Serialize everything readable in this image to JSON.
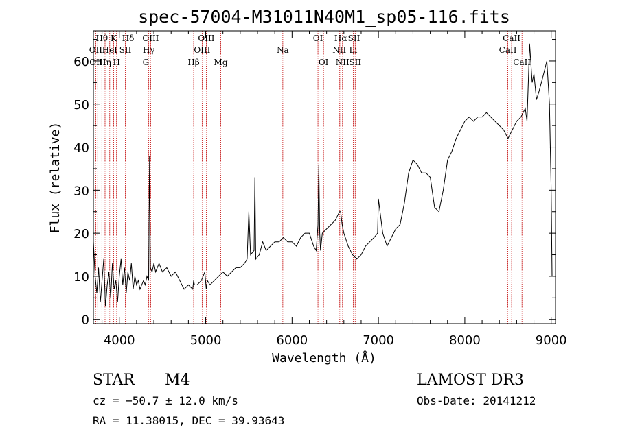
{
  "chart_data": {
    "type": "line",
    "title": "spec-57004-M31011N40M1_sp05-116.fits",
    "xlabel": "Wavelength (Å)",
    "ylabel": "Flux (relative)",
    "xlim": [
      3700,
      9050
    ],
    "ylim": [
      -1,
      67
    ],
    "x_ticks": [
      4000,
      5000,
      6000,
      7000,
      8000,
      9000
    ],
    "x_tick_labels": [
      "4000",
      "5000",
      "6000",
      "7000",
      "8000",
      "9000"
    ],
    "y_ticks": [
      0,
      10,
      20,
      30,
      40,
      50,
      60
    ],
    "y_tick_labels": [
      "0",
      "10",
      "20",
      "30",
      "40",
      "50",
      "60"
    ],
    "series": [
      {
        "name": "spectrum",
        "color": "#000000",
        "x": [
          3700,
          3720,
          3740,
          3760,
          3780,
          3800,
          3820,
          3840,
          3860,
          3880,
          3900,
          3920,
          3940,
          3960,
          3980,
          4000,
          4020,
          4040,
          4060,
          4080,
          4100,
          4120,
          4140,
          4160,
          4180,
          4200,
          4220,
          4240,
          4260,
          4280,
          4300,
          4320,
          4340,
          4350,
          4360,
          4380,
          4400,
          4420,
          4440,
          4460,
          4480,
          4500,
          4550,
          4600,
          4650,
          4700,
          4750,
          4800,
          4850,
          4861,
          4870,
          4900,
          4950,
          4990,
          5007,
          5020,
          5050,
          5100,
          5150,
          5200,
          5250,
          5300,
          5350,
          5400,
          5450,
          5480,
          5500,
          5520,
          5560,
          5570,
          5580,
          5620,
          5660,
          5700,
          5750,
          5800,
          5850,
          5900,
          5950,
          6000,
          6050,
          6100,
          6150,
          6200,
          6250,
          6280,
          6300,
          6310,
          6320,
          6330,
          6350,
          6400,
          6450,
          6500,
          6550,
          6563,
          6580,
          6600,
          6650,
          6700,
          6750,
          6800,
          6850,
          6900,
          6950,
          6990,
          7000,
          7050,
          7100,
          7150,
          7200,
          7250,
          7300,
          7350,
          7400,
          7450,
          7500,
          7550,
          7600,
          7650,
          7700,
          7750,
          7800,
          7850,
          7900,
          7950,
          8000,
          8050,
          8100,
          8150,
          8200,
          8250,
          8300,
          8350,
          8400,
          8450,
          8500,
          8550,
          8600,
          8650,
          8700,
          8720,
          8750,
          8780,
          8800,
          8830,
          8860,
          8900,
          8950,
          8980,
          9000,
          9010
        ],
        "y": [
          18,
          10,
          6,
          12,
          4,
          9,
          14,
          3,
          8,
          11,
          5,
          13,
          7,
          9,
          4,
          10,
          14,
          8,
          12,
          6,
          11,
          9,
          13,
          7,
          10,
          8,
          9,
          7,
          8,
          9,
          8,
          10,
          9,
          38,
          12,
          11,
          13,
          11,
          12,
          13,
          12,
          11,
          12,
          10,
          11,
          9,
          7,
          8,
          7,
          9,
          8,
          8,
          9,
          11,
          7,
          9,
          8,
          9,
          10,
          11,
          10,
          11,
          12,
          12,
          13,
          14,
          25,
          15,
          16,
          33,
          14,
          15,
          18,
          16,
          17,
          18,
          18,
          19,
          18,
          18,
          17,
          19,
          20,
          20,
          17,
          16,
          22,
          36,
          20,
          16,
          20,
          21,
          22,
          23,
          25,
          25,
          22,
          20,
          17,
          15,
          14,
          15,
          17,
          18,
          19,
          20,
          28,
          20,
          17,
          19,
          21,
          22,
          27,
          34,
          37,
          36,
          34,
          34,
          33,
          26,
          25,
          30,
          37,
          39,
          42,
          44,
          46,
          47,
          46,
          47,
          47,
          48,
          47,
          46,
          45,
          44,
          42,
          44,
          46,
          47,
          49,
          46,
          64,
          55,
          57,
          51,
          53,
          56,
          60,
          50,
          30,
          10
        ]
      }
    ],
    "line_markers": [
      {
        "label": "Hθ",
        "x": 3798,
        "row": 0
      },
      {
        "label": "OII",
        "x": 3727,
        "row": 1
      },
      {
        "label": "OIII",
        "x": 3750,
        "row": 2
      },
      {
        "label": "Hη",
        "x": 3835,
        "row": 2
      },
      {
        "label": "K",
        "x": 3934,
        "row": 0
      },
      {
        "label": "HeI",
        "x": 3889,
        "row": 1
      },
      {
        "label": "H",
        "x": 3968,
        "row": 2
      },
      {
        "label": "SII",
        "x": 4070,
        "row": 1
      },
      {
        "label": "Hδ",
        "x": 4102,
        "row": 0
      },
      {
        "label": "OIII",
        "x": 4363,
        "row": 0
      },
      {
        "label": "Hγ",
        "x": 4341,
        "row": 1
      },
      {
        "label": "G",
        "x": 4308,
        "row": 2
      },
      {
        "label": "OIII",
        "x": 5007,
        "row": 0
      },
      {
        "label": "OIII",
        "x": 4959,
        "row": 1
      },
      {
        "label": "Hβ",
        "x": 4861,
        "row": 2
      },
      {
        "label": "Mg",
        "x": 5175,
        "row": 2
      },
      {
        "label": "Na",
        "x": 5893,
        "row": 1
      },
      {
        "label": "OI",
        "x": 6300,
        "row": 0
      },
      {
        "label": "OI",
        "x": 6364,
        "row": 2
      },
      {
        "label": "Hα",
        "x": 6563,
        "row": 0
      },
      {
        "label": "SII",
        "x": 6717,
        "row": 0
      },
      {
        "label": "NII",
        "x": 6548,
        "row": 1
      },
      {
        "label": "Li",
        "x": 6708,
        "row": 1
      },
      {
        "label": "NII",
        "x": 6584,
        "row": 2
      },
      {
        "label": "SII",
        "x": 6731,
        "row": 2
      },
      {
        "label": "CaII",
        "x": 8542,
        "row": 0
      },
      {
        "label": "CaII",
        "x": 8498,
        "row": 1
      },
      {
        "label": "CaII",
        "x": 8662,
        "row": 2
      }
    ]
  },
  "info": {
    "class_label": "STAR",
    "subclass": "M4",
    "survey": "LAMOST DR3",
    "cz": "cz = −50.7 ± 12.0 km/s",
    "obs_date": "Obs-Date: 20141212",
    "radec": "RA =  11.38015, DEC =  39.93643"
  },
  "colors": {
    "line_marker": "#c00000",
    "spectrum": "#000000"
  }
}
